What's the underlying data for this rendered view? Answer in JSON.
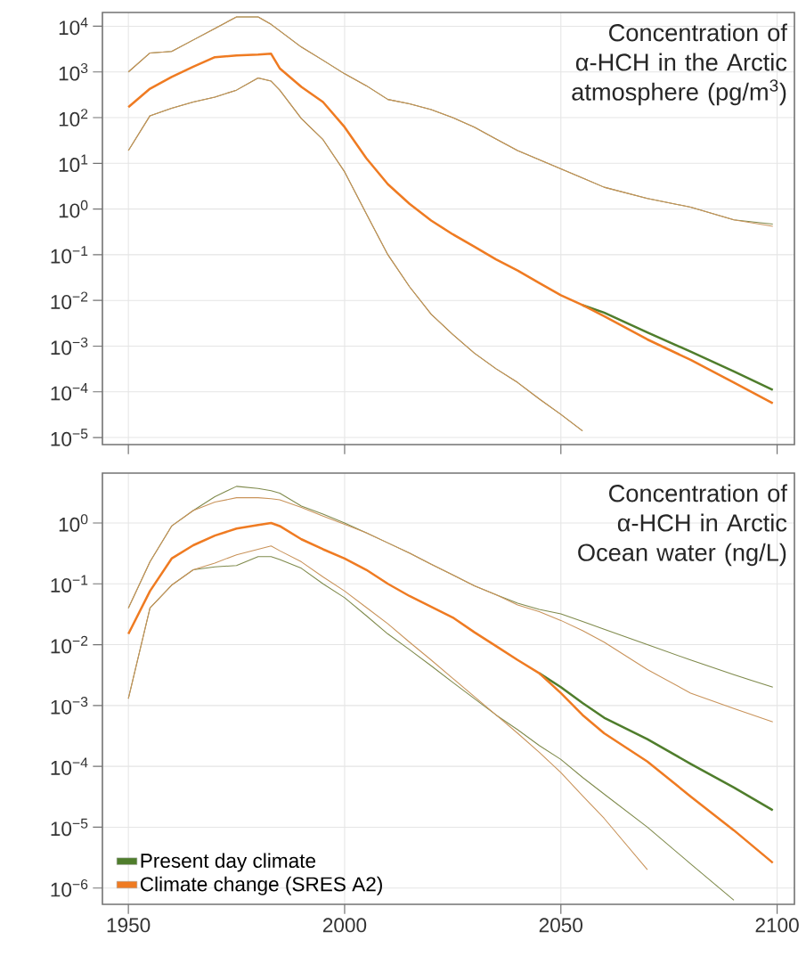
{
  "chart_data": [
    {
      "type": "line",
      "title": "Concentration of α-HCH in the Arctic atmosphere (pg/m$^{3}$)",
      "log": "y",
      "grid": true,
      "tick_labels": "y",
      "xlim": [
        1944,
        2104
      ],
      "xticks": [
        1950,
        2000,
        2050,
        2100
      ],
      "ylim": [
        7e-06,
        20000
      ],
      "yticks": [
        {
          "value": 10000,
          "label": "10$^{4}$"
        },
        {
          "value": 1000,
          "label": "10$^{3}$"
        },
        {
          "value": 100,
          "label": "10$^{2}$"
        },
        {
          "value": 10,
          "label": "10$^{1}$"
        },
        {
          "value": 1,
          "label": "10$^{0}$"
        },
        {
          "value": 0.1,
          "label": "10$^{−1}$"
        },
        {
          "value": 0.01,
          "label": "10$^{−2}$"
        },
        {
          "value": 0.001,
          "label": "10$^{−3}$"
        },
        {
          "value": 0.0001,
          "label": "10$^{−4}$"
        },
        {
          "value": 1e-05,
          "label": "10$^{−5}$"
        }
      ],
      "x": [
        1950,
        1955,
        1960,
        1965,
        1970,
        1975,
        1980,
        1983,
        1985,
        1990,
        1995,
        2000,
        2005,
        2010,
        2015,
        2020,
        2025,
        2030,
        2035,
        2040,
        2045,
        2050,
        2055,
        2060,
        2070,
        2080,
        2090,
        2099
      ],
      "series": [
        {
          "color": "#4f7d2c",
          "values": [
            null,
            null,
            null,
            null,
            null,
            null,
            null,
            null,
            null,
            null,
            null,
            null,
            null,
            null,
            null,
            null,
            null,
            null,
            null,
            null,
            null,
            null,
            0.0079,
            0.0054,
            0.002,
            0.00076,
            0.00028,
            0.00011
          ]
        },
        {
          "color": "#ef7b22",
          "values": [
            170,
            430,
            780,
            1300,
            2100,
            2300,
            2400,
            2500,
            1200,
            470,
            220,
            62,
            13,
            3.5,
            1.3,
            0.56,
            0.28,
            0.15,
            0.079,
            0.045,
            0.024,
            0.013,
            0.0079,
            0.0045,
            0.0014,
            0.0005,
            0.00016,
            5.6e-05
          ]
        },
        {
          "color": "#7f8a4c",
          "values": [
            1000,
            2600,
            2800,
            5000,
            8900,
            16000,
            16000,
            11000,
            7900,
            3500,
            1800,
            910,
            500,
            250,
            200,
            150,
            100,
            62,
            34,
            19,
            12,
            7.6,
            4.8,
            3.0,
            1.7,
            1.1,
            0.58,
            0.47
          ]
        },
        {
          "color": "#c9935a",
          "values": [
            1000,
            2600,
            2800,
            5000,
            8900,
            16000,
            16000,
            11000,
            7900,
            3500,
            1800,
            910,
            500,
            250,
            200,
            150,
            100,
            62,
            34,
            19,
            12,
            7.6,
            4.8,
            3.0,
            1.7,
            1.1,
            0.58,
            0.42
          ]
        },
        {
          "color": "#7f8a4c",
          "x": [
            1950,
            1955,
            1960,
            1965,
            1970,
            1975,
            1980,
            1983,
            1985,
            1990,
            1995,
            2000,
            2005,
            2010,
            2015,
            2020,
            2025,
            2030,
            2035,
            2040,
            2045,
            2050,
            2055
          ],
          "values": [
            19,
            110,
            160,
            220,
            280,
            400,
            740,
            630,
            400,
            95,
            33,
            6.5,
            0.79,
            0.1,
            0.02,
            0.005,
            0.0018,
            0.0007,
            0.00032,
            0.00016,
            7e-05,
            3.2e-05,
            1.4e-05
          ]
        },
        {
          "color": "#c9935a",
          "x": [
            1950,
            1955,
            1960,
            1965,
            1970,
            1975,
            1980,
            1983,
            1985,
            1990,
            1995,
            2000,
            2005,
            2010,
            2015,
            2020,
            2025,
            2030,
            2035,
            2040,
            2045,
            2050,
            2055
          ],
          "values": [
            19,
            110,
            160,
            220,
            280,
            400,
            740,
            630,
            400,
            95,
            33,
            6.5,
            0.79,
            0.1,
            0.02,
            0.005,
            0.0018,
            0.0007,
            0.00032,
            0.00016,
            7e-05,
            3.2e-05,
            1.4e-05
          ]
        }
      ]
    },
    {
      "type": "line",
      "title": "Concentration of α-HCH in Arctic Ocean water (ng/L)",
      "log": "y",
      "grid": true,
      "legend": "bottom left",
      "xlim": [
        1944,
        2104
      ],
      "xticks": [
        1950,
        2000,
        2050,
        2100
      ],
      "ylim": [
        5.4e-07,
        6.6
      ],
      "yticks": [
        {
          "value": 1,
          "label": "10$^{0}$"
        },
        {
          "value": 0.1,
          "label": "10$^{−1}$"
        },
        {
          "value": 0.01,
          "label": "10$^{−2}$"
        },
        {
          "value": 0.001,
          "label": "10$^{−3}$"
        },
        {
          "value": 0.0001,
          "label": "10$^{−4}$"
        },
        {
          "value": 1e-05,
          "label": "10$^{−5}$"
        },
        {
          "value": 1e-06,
          "label": "10$^{−6}$"
        }
      ],
      "x": [
        1950,
        1955,
        1960,
        1965,
        1970,
        1975,
        1980,
        1983,
        1985,
        1990,
        1995,
        2000,
        2005,
        2010,
        2015,
        2020,
        2025,
        2030,
        2035,
        2040,
        2045,
        2050,
        2055,
        2060,
        2070,
        2080,
        2090,
        2099
      ],
      "series": [
        {
          "name": "Present day climate",
          "color": "#4f7d2c",
          "values": [
            null,
            null,
            null,
            null,
            null,
            null,
            null,
            null,
            null,
            null,
            null,
            null,
            null,
            null,
            null,
            null,
            null,
            null,
            null,
            null,
            0.0034,
            0.002,
            0.0011,
            0.00063,
            0.00028,
            0.00011,
            4.5e-05,
            1.9e-05
          ]
        },
        {
          "name": "Climate change (SRES A2)",
          "color": "#ef7b22",
          "values": [
            0.015,
            0.076,
            0.26,
            0.43,
            0.62,
            0.81,
            0.93,
            1.0,
            0.89,
            0.54,
            0.37,
            0.26,
            0.17,
            0.1,
            0.063,
            0.042,
            0.028,
            0.016,
            0.0095,
            0.0056,
            0.0034,
            0.0016,
            0.0007,
            0.00035,
            0.00012,
            3.2e-05,
            8.9e-06,
            2.6e-06
          ]
        },
        {
          "color": "#7f8a4c",
          "values": [
            0.04,
            0.23,
            0.89,
            1.6,
            2.7,
            4.0,
            3.7,
            3.4,
            3.1,
            1.9,
            1.4,
            1.0,
            0.69,
            0.47,
            0.32,
            0.21,
            0.14,
            0.093,
            0.066,
            0.048,
            0.038,
            0.032,
            0.024,
            0.018,
            0.01,
            0.0056,
            0.0032,
            0.002
          ]
        },
        {
          "color": "#c9935a",
          "values": [
            0.04,
            0.23,
            0.89,
            1.6,
            2.2,
            2.6,
            2.6,
            2.5,
            2.4,
            1.8,
            1.3,
            0.95,
            0.69,
            0.47,
            0.32,
            0.21,
            0.14,
            0.093,
            0.066,
            0.045,
            0.035,
            0.025,
            0.017,
            0.011,
            0.0039,
            0.0016,
            0.00089,
            0.00054
          ]
        },
        {
          "color": "#7f8a4c",
          "x": [
            1950,
            1955,
            1960,
            1965,
            1970,
            1975,
            1980,
            1983,
            1985,
            1990,
            1995,
            2000,
            2005,
            2010,
            2015,
            2020,
            2025,
            2030,
            2035,
            2040,
            2045,
            2050,
            2055,
            2060,
            2070,
            2080,
            2090
          ],
          "values": [
            0.0013,
            0.04,
            0.095,
            0.17,
            0.19,
            0.2,
            0.28,
            0.28,
            0.25,
            0.18,
            0.1,
            0.059,
            0.03,
            0.015,
            0.0083,
            0.0045,
            0.0024,
            0.0013,
            0.0007,
            0.0004,
            0.00022,
            0.00013,
            6.6e-05,
            3.5e-05,
            1e-05,
            2.5e-06,
            6.3e-07
          ]
        },
        {
          "color": "#c9935a",
          "x": [
            1950,
            1955,
            1960,
            1965,
            1970,
            1975,
            1980,
            1983,
            1985,
            1990,
            1995,
            2000,
            2005,
            2010,
            2015,
            2020,
            2025,
            2030,
            2035,
            2040,
            2045,
            2050,
            2055,
            2060,
            2070
          ],
          "values": [
            0.0013,
            0.04,
            0.095,
            0.17,
            0.22,
            0.3,
            0.37,
            0.42,
            0.35,
            0.23,
            0.13,
            0.076,
            0.041,
            0.022,
            0.011,
            0.0056,
            0.0028,
            0.0014,
            0.0007,
            0.00035,
            0.00017,
            7.9e-05,
            3.3e-05,
            1.4e-05,
            2e-06
          ]
        }
      ]
    }
  ]
}
